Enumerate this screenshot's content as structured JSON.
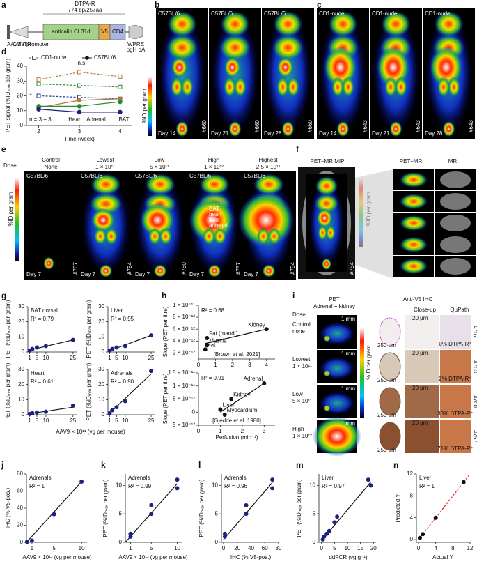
{
  "panel_letters": [
    "a",
    "b",
    "c",
    "d",
    "e",
    "f",
    "g",
    "h",
    "i",
    "j",
    "k",
    "l",
    "m",
    "n"
  ],
  "panels": {
    "a": {
      "header": "DTPA-R",
      "size": "774 bp/257aa",
      "itr": "AAV2 ITR",
      "promoter": "CMV promoter",
      "gene": "anticalin CL31d",
      "v5": "V5",
      "cd4": "CD4",
      "wpre": "WPRE",
      "pa": "bgH pA"
    },
    "b": {
      "strain": "C57BL/6",
      "days": [
        "Day 14",
        "Day 21",
        "Day 28"
      ],
      "id": "#660",
      "colorbar": "%ID per gram"
    },
    "c": {
      "strain": "CD1-nude",
      "days": [
        "Day 14",
        "Day 21",
        "Day 28"
      ],
      "id": "#643"
    },
    "e": {
      "dose_label": "Dose:",
      "doses": [
        {
          "name": "Control",
          "amount": "None"
        },
        {
          "name": "Lowest",
          "amount": "1 × 10¹¹"
        },
        {
          "name": "Low",
          "amount": "5 × 10¹¹"
        },
        {
          "name": "High",
          "amount": "1 × 10¹²"
        },
        {
          "name": "Highest",
          "amount": "2.5 × 10¹²"
        }
      ],
      "strain": "C57BL/6",
      "day": "Day 7",
      "ids": [
        "#767",
        "#764",
        "#760",
        "#757",
        "#754"
      ],
      "organs": [
        "BAT",
        "heart",
        "liver",
        "adrenal"
      ],
      "colorbar": "%ID per gram"
    },
    "f": {
      "titles": [
        "PET–MR MIP",
        "PET–MR",
        "MR"
      ],
      "id": "#754",
      "colorbar": "%ID per gram"
    },
    "i": {
      "pet": "PET",
      "pet_sub": "Adrenal + kidney",
      "dose_label": "Dose:",
      "doses": [
        {
          "name": "Control",
          "amount": "none"
        },
        {
          "name": "Lowest",
          "amount": "1 × 10¹¹"
        },
        {
          "name": "Low",
          "amount": "5 × 10¹¹"
        },
        {
          "name": "High",
          "amount": "1 × 10¹²"
        }
      ],
      "scale": "1 mm",
      "ihc": "Anti-V5 IHC",
      "closeup": "Close-up",
      "qupath": "QuPath",
      "colorbar": "%ID per gram",
      "micro": [
        "250 µm",
        "20 µm"
      ],
      "percents": [
        "0% DTPA-R⁺",
        "2% DTPA-R⁺",
        "33% DTPA-R⁺",
        "71% DTPA-R⁺"
      ],
      "ids": [
        "#767",
        "#763",
        "#760",
        "#757"
      ]
    }
  },
  "chart_data": [
    {
      "type": "line",
      "xlabel": "Time (week)",
      "ylabel": "PET signal (%IDₘₐₓ per gram)",
      "x": [
        2,
        3,
        4
      ],
      "xlim": [
        1.7,
        4.3
      ],
      "xticks": [
        2,
        3,
        4
      ],
      "ylim": [
        0,
        40
      ],
      "yticks": [
        0,
        10,
        20,
        30,
        40
      ],
      "legend": [
        "CD1-nude",
        "C57BL/6"
      ],
      "labels": [
        "Heart",
        "Adrenal",
        "BAT"
      ],
      "annotations": [
        "n.s.",
        "*",
        "*",
        "n = 3 + 3"
      ],
      "series": [
        {
          "color": "#b07a3a",
          "dashed": true,
          "open": true,
          "values": [
            31,
            36,
            33
          ]
        },
        {
          "color": "#2e8b2e",
          "dashed": true,
          "open": true,
          "values": [
            28,
            27,
            26
          ]
        },
        {
          "color": "#2b3a9a",
          "dashed": true,
          "open": true,
          "values": [
            20,
            19,
            18
          ]
        },
        {
          "color": "#b07a3a",
          "dashed": false,
          "open": false,
          "values": [
            12,
            17,
            18
          ]
        },
        {
          "color": "#2e8b2e",
          "dashed": false,
          "open": false,
          "values": [
            13,
            13,
            16
          ]
        },
        {
          "color": "#1a237e",
          "dashed": false,
          "open": false,
          "values": [
            11,
            9,
            9
          ]
        }
      ]
    },
    {
      "type": "scatter",
      "title": "BAT dorsal",
      "annotation": "R² = 0.79",
      "ylabel": "PET (%IDₘₐₓ per gram)",
      "x": [
        1,
        2.5,
        5,
        10,
        25
      ],
      "values": [
        1,
        2,
        3,
        4,
        8
      ],
      "color": "#1a237e",
      "xlim": [
        0,
        27
      ],
      "xticks": [
        1,
        5,
        10,
        25
      ],
      "ylim": [
        0,
        30
      ],
      "yticks": [
        0,
        10,
        20,
        30
      ],
      "fit": {
        "x": [
          0,
          25
        ],
        "y": [
          1,
          8
        ]
      }
    },
    {
      "type": "scatter",
      "title": "Liver",
      "annotation": "R² = 0.95",
      "ylabel": "PET (%IDₘₐₓ per gram)",
      "x": [
        1,
        2.5,
        5,
        10,
        25
      ],
      "values": [
        1,
        2,
        3,
        4,
        11
      ],
      "color": "#1a237e",
      "xlim": [
        0,
        27
      ],
      "xticks": [
        1,
        5,
        10,
        25
      ],
      "ylim": [
        0,
        30
      ],
      "yticks": [
        0,
        10,
        20,
        30
      ],
      "fit": {
        "x": [
          0,
          25
        ],
        "y": [
          0.5,
          11
        ]
      }
    },
    {
      "type": "scatter",
      "title": "Heart",
      "annotation": "R² = 0.61",
      "ylabel": "PET (%IDₘₐₓ per gram)",
      "xlabel": "AAV9 × 10¹¹ (vg per mouse)",
      "x": [
        1,
        2.5,
        5,
        10,
        25
      ],
      "values": [
        0.5,
        1,
        1.5,
        2,
        6
      ],
      "color": "#1a237e",
      "xlim": [
        0,
        27
      ],
      "xticks": [
        1,
        5,
        10,
        25
      ],
      "ylim": [
        0,
        30
      ],
      "yticks": [
        0,
        10,
        20,
        30
      ],
      "fit": {
        "x": [
          0,
          25
        ],
        "y": [
          0.5,
          5
        ]
      }
    },
    {
      "type": "scatter",
      "title": "Adrenals",
      "annotation": "R² = 0.90",
      "ylabel": "PET (%IDₘₐₓ per gram)",
      "x": [
        1,
        2.5,
        5,
        10,
        25
      ],
      "values": [
        1,
        3,
        5,
        9,
        29
      ],
      "color": "#1a237e",
      "xlim": [
        0,
        27
      ],
      "xticks": [
        1,
        5,
        10,
        25
      ],
      "ylim": [
        0,
        30
      ],
      "yticks": [
        0,
        10,
        20,
        30
      ],
      "fit": {
        "x": [
          0,
          25
        ],
        "y": [
          0,
          27
        ]
      }
    },
    {
      "type": "scatter",
      "annotation": "R² = 0.68",
      "source": "[Brown et al. 2021]",
      "ylabel": "Slope (PET per titre)",
      "x": [
        0.5,
        0.5,
        0.4,
        4
      ],
      "values": [
        4.5e-12,
        3.3e-12,
        2.6e-12,
        6e-12
      ],
      "point_labels": [
        "Fat (mand.)",
        "Muscle",
        "Fat",
        "Kidney"
      ],
      "color": "#111",
      "xlim": [
        0,
        4.5
      ],
      "xticks": [
        0,
        1,
        2,
        3,
        4
      ],
      "ylim": [
        1e-12,
        1e-11
      ],
      "yticks": [
        {
          "value": 2e-12,
          "label": "2 × 10⁻¹²"
        },
        {
          "value": 4e-12,
          "label": "4 × 10⁻¹²"
        },
        {
          "value": 6e-12,
          "label": "6 × 10⁻¹²"
        },
        {
          "value": 8e-12,
          "label": "8 × 10⁻¹²"
        },
        {
          "value": 1e-11,
          "label": "1 × 10⁻¹¹"
        }
      ],
      "fit": {
        "x": [
          0.4,
          4
        ],
        "y": [
          3.6e-12,
          6e-12
        ]
      }
    },
    {
      "type": "scatter",
      "annotation": "R² = 0.91",
      "source": "[Gjedde et al. 1980]",
      "xlabel": "Perfusion (min⁻¹)",
      "ylabel": "Slope (PET per titre)",
      "x": [
        1.5,
        1.0,
        1.2,
        3
      ],
      "values": [
        5e-12,
        1e-12,
        -1e-12,
        1.1e-11
      ],
      "point_labels": [
        "Kidney",
        "Liver",
        "Myocardium",
        "Adrenal"
      ],
      "color": "#111",
      "xlim": [
        0,
        3.5
      ],
      "xticks": [
        0,
        1,
        2,
        3
      ],
      "ylim": [
        -5e-12,
        1.5e-11
      ],
      "yticks": [
        {
          "value": -5e-12,
          "label": "−5 × 10⁻¹²"
        },
        {
          "value": 0,
          "label": "0"
        },
        {
          "value": 5e-12,
          "label": "5 × 10⁻¹²"
        },
        {
          "value": 1e-11,
          "label": "1 × 10⁻¹¹"
        },
        {
          "value": 1.5e-11,
          "label": "1.5 × 10⁻¹¹"
        }
      ],
      "fit": {
        "x": [
          1,
          3
        ],
        "y": [
          0,
          1.1e-11
        ]
      }
    },
    {
      "type": "scatter",
      "title": "Adrenals",
      "annotation": "R² = 1",
      "xlabel": "AAV9 × 10¹¹ (vg per mouse)",
      "ylabel": "IHC (% V5-pos.)",
      "x": [
        0.1,
        1,
        5,
        10
      ],
      "values": [
        0.5,
        2,
        33,
        71
      ],
      "color": "#1a237e",
      "xlim": [
        0,
        11
      ],
      "xticks": [
        1,
        5,
        10
      ],
      "ylim": [
        0,
        80
      ],
      "yticks": [
        0,
        20,
        40,
        60,
        80
      ],
      "fit": {
        "x": [
          0,
          10
        ],
        "y": [
          0,
          71
        ]
      }
    },
    {
      "type": "scatter",
      "title": "Adrenals",
      "annotation": "R² = 0.99",
      "xlabel": "AAV9 × 10¹¹ (vg per mouse)",
      "ylabel": "PET (%IDₘₐₓ per gram)",
      "x": [
        1,
        1,
        5,
        5,
        10,
        10
      ],
      "values": [
        1,
        1.5,
        5,
        6.5,
        9.5,
        11
      ],
      "color": "#1a237e",
      "xlim": [
        0,
        11
      ],
      "xticks": [
        1,
        5,
        10
      ],
      "ylim": [
        0,
        12
      ],
      "yticks": [
        0,
        5,
        10
      ],
      "fit": {
        "x": [
          0,
          10
        ],
        "y": [
          0,
          10.3
        ]
      }
    },
    {
      "type": "scatter",
      "title": "Adrenals",
      "annotation": "R² = 0.96",
      "xlabel": "IHC (% V5-pos.)",
      "ylabel": "PET (%IDₘₐₓ per gram)",
      "x": [
        2,
        2,
        33,
        33,
        71,
        71
      ],
      "values": [
        1,
        1.5,
        5,
        6.5,
        9.5,
        11
      ],
      "color": "#1a237e",
      "xlim": [
        -3,
        80
      ],
      "xticks": [
        0,
        20,
        40,
        60,
        80
      ],
      "ylim": [
        0,
        12
      ],
      "yticks": [
        0,
        5,
        10
      ],
      "fit": {
        "x": [
          0,
          71
        ],
        "y": [
          0.5,
          10.5
        ]
      }
    },
    {
      "type": "scatter",
      "title": "Liver",
      "annotation": "R² = 0.97",
      "xlabel": "ddPCR (vg g⁻¹)",
      "ylabel": "PET (%IDₘₐₓ per gram)",
      "x": [
        0.5,
        1,
        2,
        3,
        5,
        6,
        18,
        19
      ],
      "values": [
        0.5,
        1,
        1.5,
        2,
        3.5,
        4.5,
        11,
        10
      ],
      "color": "#1a237e",
      "xlim": [
        -1,
        21
      ],
      "xticks": [
        0,
        5,
        10,
        15,
        20
      ],
      "ylim": [
        0,
        12
      ],
      "yticks": [
        0,
        5,
        10
      ],
      "fit": {
        "x": [
          0,
          19
        ],
        "y": [
          0.3,
          10.6
        ]
      }
    },
    {
      "type": "scatter",
      "title": "Liver",
      "annotation": "R² = 1",
      "xlabel": "Actual Y",
      "ylabel": "Predicted Y",
      "x": [
        0.3,
        1,
        4,
        10.5
      ],
      "values": [
        0.3,
        1,
        4,
        10.5
      ],
      "color": "#111",
      "xlim": [
        -0.5,
        12
      ],
      "xticks": [
        0,
        4,
        8,
        12
      ],
      "ylim": [
        -0.5,
        12
      ],
      "yticks": [
        0,
        4,
        8,
        12
      ],
      "fit": {
        "x": [
          0,
          12
        ],
        "y": [
          0,
          12
        ]
      },
      "fit_color": "#d62020",
      "fit_dashed": true
    }
  ]
}
